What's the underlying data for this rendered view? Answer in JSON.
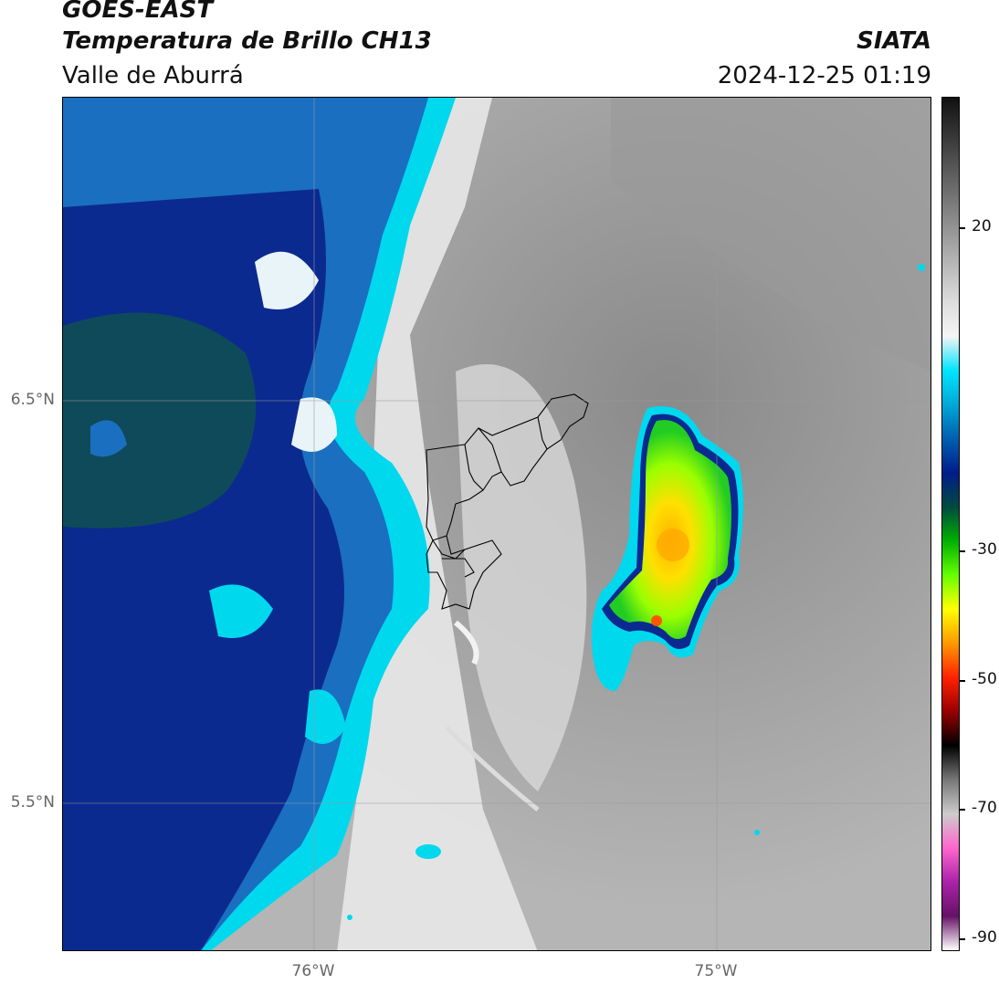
{
  "header": {
    "satellite": "GOES-EAST",
    "product": "Temperatura de Brillo CH13",
    "region": "Valle de Aburrá",
    "organization": "SIATA",
    "datetime": "2024-12-25 01:19"
  },
  "map": {
    "lat_labels": [
      "6.5°N",
      "5.5°N"
    ],
    "lon_labels": [
      "76°W",
      "75°W"
    ],
    "feature_layers": [
      "warm-gray-surface",
      "cold-cloud-band-west",
      "convective-cell-east",
      "valle-de-aburra-municipal-boundaries"
    ]
  },
  "colorbar": {
    "unit_hint": "",
    "tick_labels": [
      "20",
      "-30",
      "-50",
      "-70",
      "-90"
    ],
    "colors": [
      "#111111",
      "#333333",
      "#555555",
      "#777777",
      "#999999",
      "#bbbbbb",
      "#dddddd",
      "#f5f5f5",
      "#00e5ff",
      "#00a8d8",
      "#005fb0",
      "#001d8a",
      "#004a40",
      "#00b000",
      "#66ff00",
      "#ffff00",
      "#ff9900",
      "#ff2200",
      "#990000",
      "#000000",
      "#777777",
      "#cccccc",
      "#ff66cc",
      "#aa22aa",
      "#661166",
      "#ffffff"
    ]
  }
}
